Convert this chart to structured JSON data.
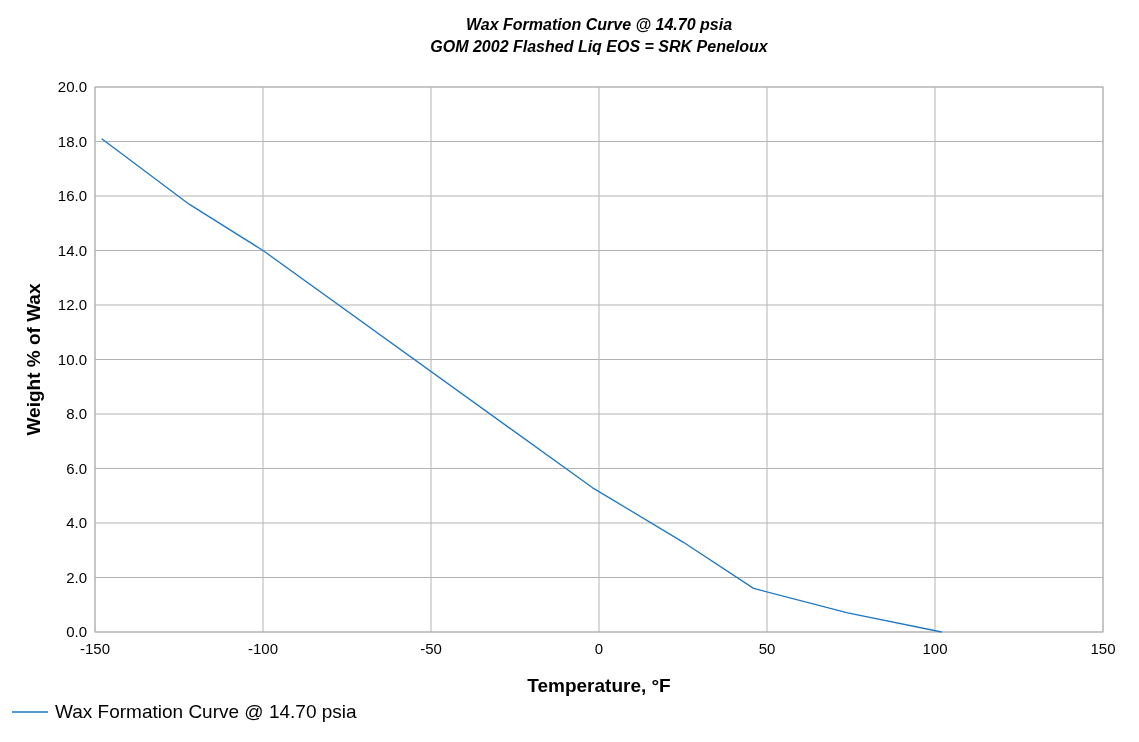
{
  "chart_data": {
    "type": "line",
    "title": "Wax Formation Curve @ 14.70 psia",
    "subtitle": "GOM 2002 Flashed Liq EOS = SRK Peneloux",
    "xlabel": "Temperature, °F",
    "ylabel": "Weight % of Wax",
    "x": [
      -148,
      -122,
      -100,
      -2,
      25,
      46,
      74,
      102
    ],
    "series": [
      {
        "name": "Wax Formation Curve @ 14.70 psia",
        "color": "#1f77c4",
        "values": [
          18.1,
          15.7,
          14.0,
          5.3,
          3.3,
          1.6,
          0.7,
          0.0
        ]
      }
    ],
    "xlim": [
      -150,
      150
    ],
    "xticks": [
      -150,
      -100,
      -50,
      0,
      50,
      100,
      150
    ],
    "ylim": [
      0,
      20
    ],
    "yticks": [
      {
        "value": 0,
        "label": "0.0"
      },
      {
        "value": 2,
        "label": "2.0"
      },
      {
        "value": 4,
        "label": "4.0"
      },
      {
        "value": 6,
        "label": "6.0"
      },
      {
        "value": 8,
        "label": "8.0"
      },
      {
        "value": 10,
        "label": "10.0"
      },
      {
        "value": 12,
        "label": "12.0"
      },
      {
        "value": 14,
        "label": "14.0"
      },
      {
        "value": 16,
        "label": "16.0"
      },
      {
        "value": 18,
        "label": "18.0"
      },
      {
        "value": 20,
        "label": "20.0"
      }
    ],
    "grid": true,
    "legend": "bottom left",
    "marker": "none",
    "line_style": "solid"
  }
}
